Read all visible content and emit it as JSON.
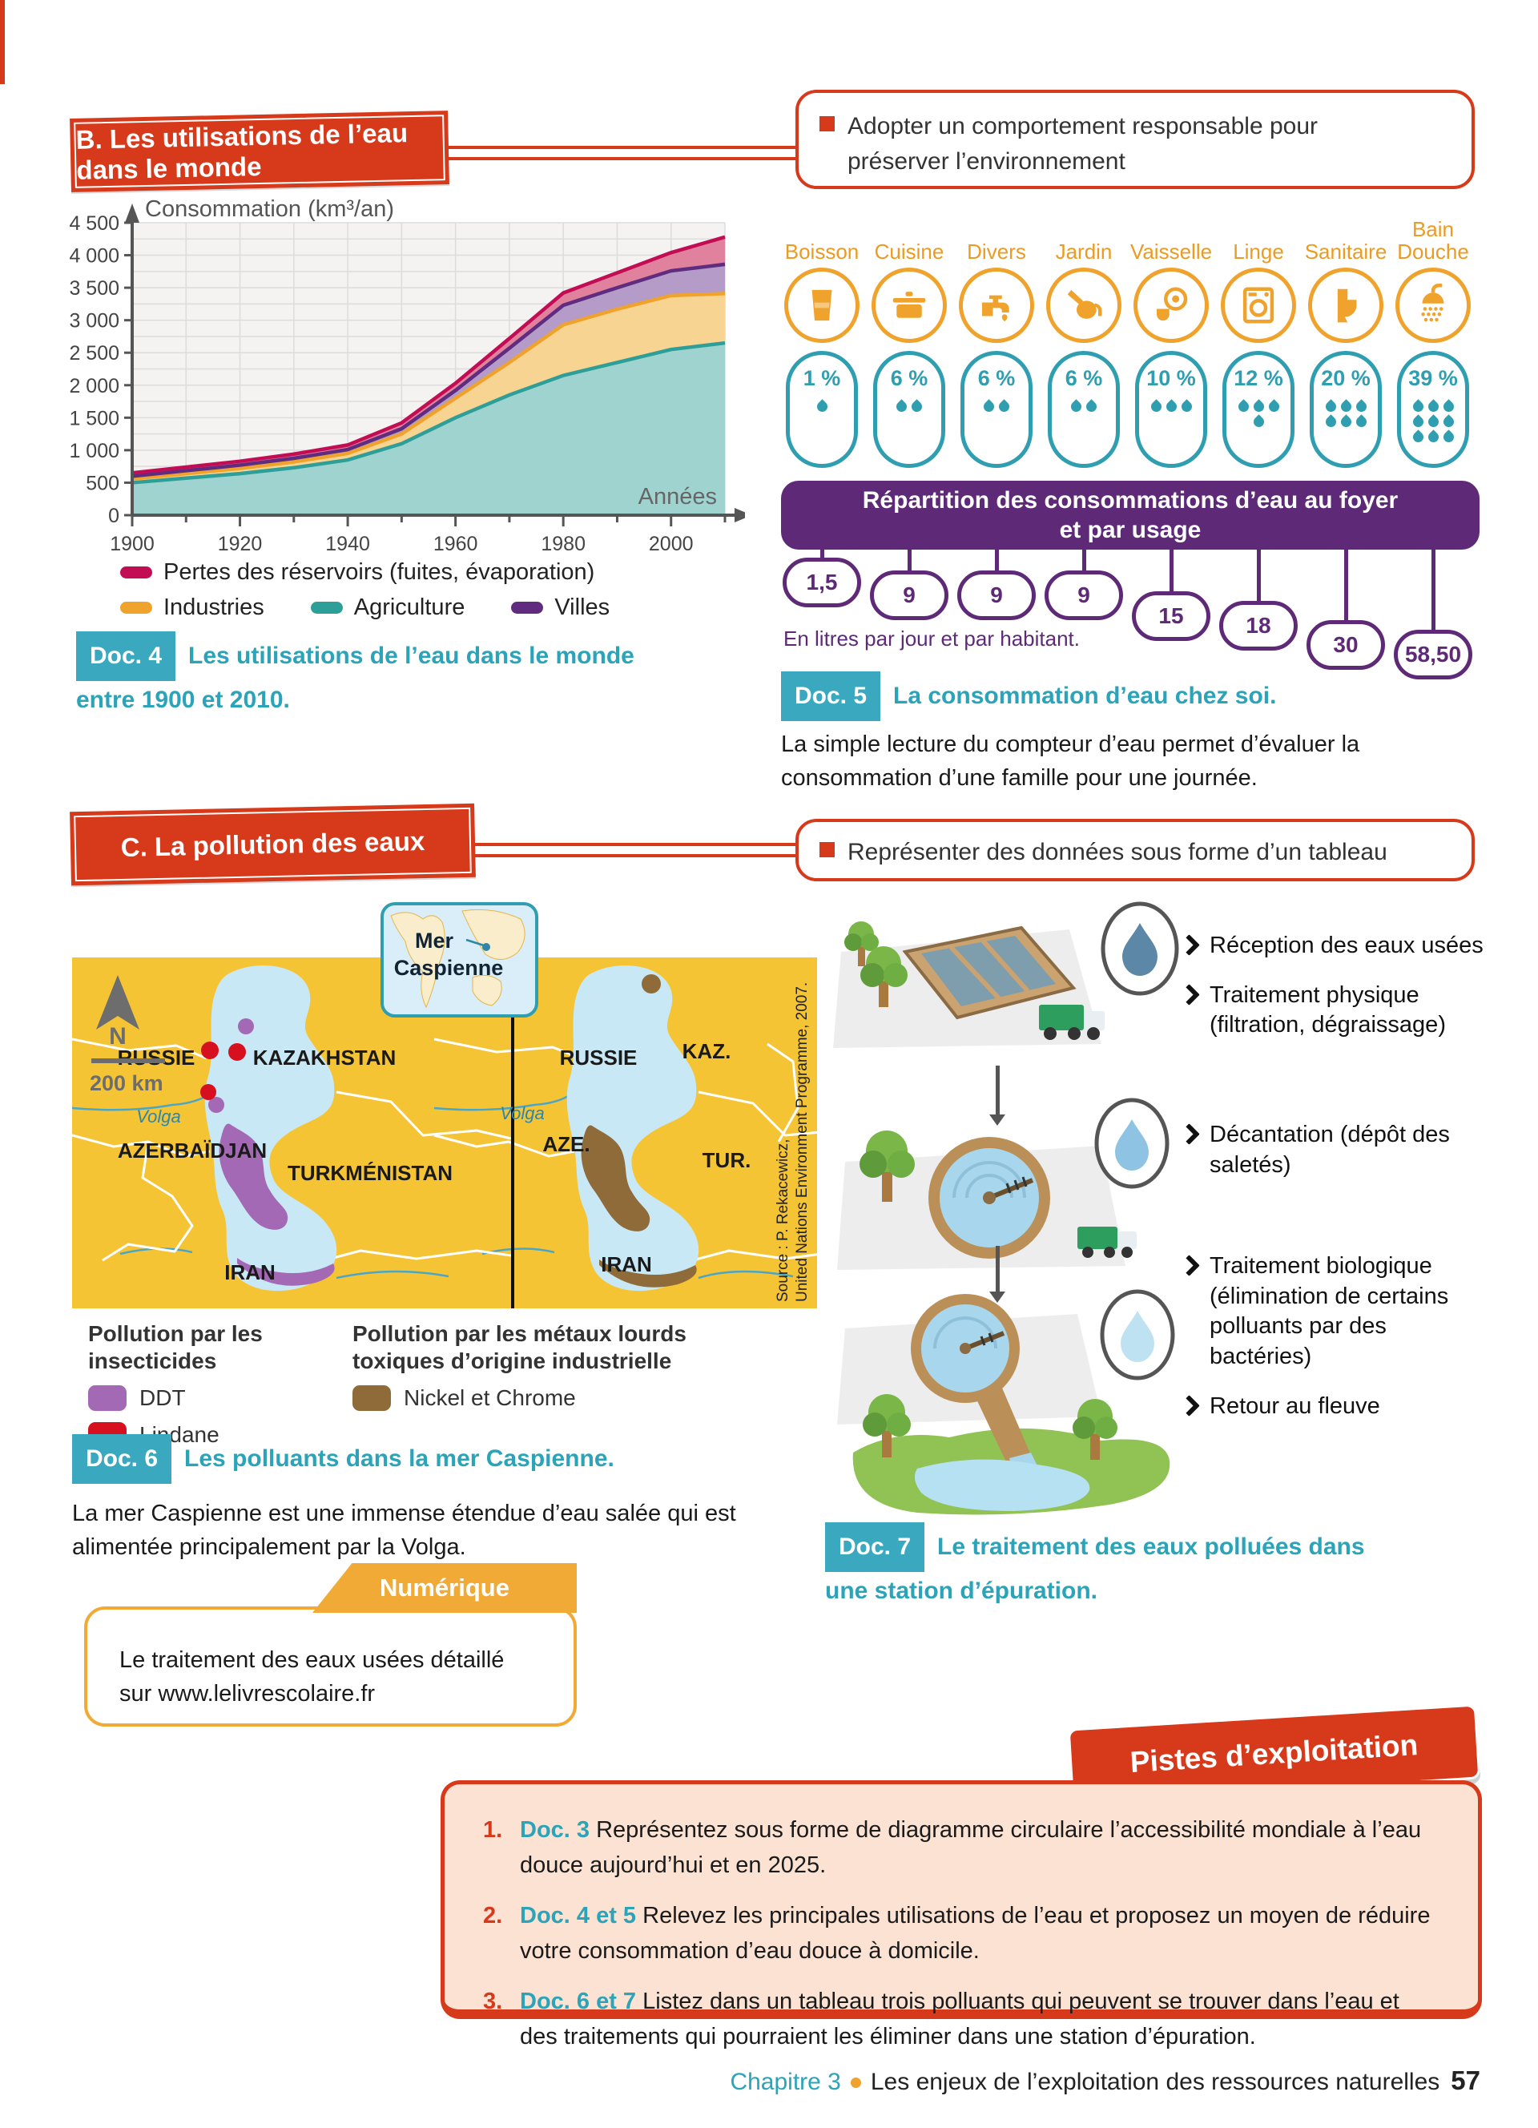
{
  "section_b": {
    "title": "B. Les utilisations de l’eau dans le monde",
    "objective": "Adopter un comportement responsable pour préserver l’environnement"
  },
  "chart_data": {
    "type": "area",
    "stacked": true,
    "title": "",
    "ylabel": "Consommation (km³/an)",
    "xlabel": "Années",
    "ylim": [
      0,
      4500
    ],
    "ytick_step": 500,
    "x": [
      1900,
      1910,
      1920,
      1930,
      1940,
      1950,
      1960,
      1970,
      1980,
      1990,
      2000,
      2010
    ],
    "series": [
      {
        "name": "Agriculture",
        "fill": "#9fd3cf",
        "stroke": "#2e9e99",
        "values": [
          500,
          570,
          640,
          730,
          850,
          1100,
          1500,
          1850,
          2150,
          2350,
          2550,
          2650
        ]
      },
      {
        "name": "Industries",
        "fill": "#f8d492",
        "stroke": "#f0a32c",
        "values": [
          60,
          70,
          80,
          90,
          100,
          150,
          300,
          500,
          780,
          820,
          830,
          760
        ]
      },
      {
        "name": "Villes",
        "fill": "#b49bc8",
        "stroke": "#5f2c80",
        "values": [
          40,
          45,
          50,
          55,
          60,
          80,
          120,
          220,
          300,
          330,
          380,
          450
        ]
      },
      {
        "name": "Pertes des réservoirs (fuites, évaporation)",
        "fill": "#e0829e",
        "stroke": "#c20d55",
        "values": [
          50,
          55,
          60,
          65,
          70,
          90,
          110,
          150,
          190,
          230,
          280,
          420
        ]
      }
    ]
  },
  "doc4": {
    "badge": "Doc. 4",
    "caption": "Les utilisations de l’eau dans le monde entre 1900 et 2010."
  },
  "usages": {
    "items": [
      {
        "label": "Boisson",
        "icon": "glass",
        "percent": "1 %",
        "drops": 1,
        "liters": "1,5"
      },
      {
        "label": "Cuisine",
        "icon": "pot",
        "percent": "6 %",
        "drops": 2,
        "liters": "9"
      },
      {
        "label": "Divers",
        "icon": "faucet",
        "percent": "6 %",
        "drops": 2,
        "liters": "9"
      },
      {
        "label": "Jardin",
        "icon": "watering-can",
        "percent": "6 %",
        "drops": 2,
        "liters": "9"
      },
      {
        "label": "Vaisselle",
        "icon": "dishes",
        "percent": "10 %",
        "drops": 3,
        "liters": "15"
      },
      {
        "label": "Linge",
        "icon": "washing-machine",
        "percent": "12 %",
        "drops": 4,
        "liters": "18"
      },
      {
        "label": "Sanitaire",
        "icon": "toilet",
        "percent": "20 %",
        "drops": 6,
        "liters": "30"
      },
      {
        "label": "Bain Douche",
        "icon": "shower",
        "percent": "39 %",
        "drops": 9,
        "liters": "58,50"
      }
    ],
    "banner": "Répartition des consommations d’eau au foyer et par usage",
    "unit_note": "En litres par jour et par habitant."
  },
  "doc5": {
    "badge": "Doc. 5",
    "caption": "La consommation d’eau chez soi.",
    "body": "La simple lecture du compteur d’eau permet d’évaluer la consommation d’une famille pour une journée."
  },
  "section_c": {
    "title": "C. La pollution des eaux",
    "objective": "Représenter des données sous forme d’un tableau"
  },
  "map": {
    "inset_line1": "Mer",
    "inset_line2": "Caspienne",
    "north": "N",
    "scale": "200 km",
    "left_panel": {
      "country1": "RUSSIE",
      "country2": "KAZAKHSTAN",
      "country3": "AZERBAÏDJAN",
      "country4": "TURKMÉNISTAN",
      "country5": "IRAN",
      "river": "Volga"
    },
    "right_panel": {
      "country1": "RUSSIE",
      "country2": "KAZ.",
      "country3": "AZE.",
      "country4": "TUR.",
      "country5": "IRAN",
      "river": "Volga"
    },
    "source_line1": "Source : P. Rekacewicz,",
    "source_line2": "United Nations Environment Programme, 2007.",
    "legend_insecticides": {
      "title": "Pollution par les insecticides",
      "item1": {
        "label": "DDT",
        "color": "#a469b4"
      },
      "item2": {
        "label": "Lindane",
        "color": "#d6101f"
      }
    },
    "legend_metals": {
      "title": "Pollution par les métaux lourds toxiques d’origine industrielle",
      "item1": {
        "label": "Nickel et Chrome",
        "color": "#8f6b3a"
      }
    }
  },
  "doc6": {
    "badge": "Doc. 6",
    "caption": "Les polluants dans la mer Caspienne.",
    "body": "La mer Caspienne est une immense étendue d’eau salée qui est alimentée principalement par la Volga."
  },
  "numerique": {
    "tab": "Numérique",
    "body": "Le traitement des eaux usées détaillé sur www.lelivrescolaire.fr"
  },
  "station": {
    "steps": [
      {
        "bullets": [
          "Réception des eaux usées",
          "Traitement physique (filtration, dégraissage)"
        ]
      },
      {
        "bullets": [
          "Décantation (dépôt des saletés)"
        ]
      },
      {
        "bullets": [
          "Traitement biologique (élimination de certains polluants par des bactéries)",
          "Retour au fleuve"
        ]
      }
    ]
  },
  "doc7": {
    "badge": "Doc. 7",
    "caption": "Le traitement des eaux polluées dans une station d’épuration."
  },
  "pistes": {
    "tab": "Pistes d’exploitation",
    "questions": [
      {
        "num": "1.",
        "doc": "Doc. 3",
        "text": "Représentez sous forme de diagramme circulaire l’accessibilité mondiale à l’eau douce aujourd’hui et en 2025."
      },
      {
        "num": "2.",
        "doc": "Doc. 4 et 5",
        "text": "Relevez les principales utilisations de l’eau et proposez un moyen de réduire votre consommation d’eau douce à domicile."
      },
      {
        "num": "3.",
        "doc": "Doc. 6 et 7",
        "text": "Listez dans un tableau trois polluants qui peuvent se trouver dans l’eau et des traitements qui pourraient les éliminer dans une station d’épuration."
      }
    ]
  },
  "footer": {
    "chapter": "Chapitre 3",
    "title": "Les enjeux de l’exploitation des ressources naturelles",
    "page_number": "57"
  }
}
